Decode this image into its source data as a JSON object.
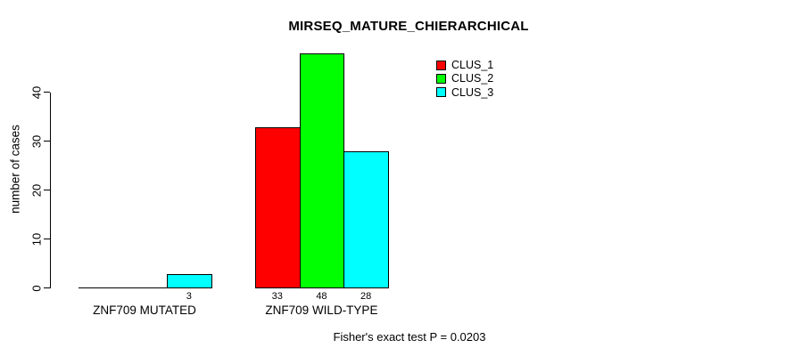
{
  "title": "MIRSEQ_MATURE_CHIERARCHICAL",
  "footer": "Fisher's exact test P = 0.0203",
  "y_axis": {
    "label": "number of cases"
  },
  "legend": {
    "items": [
      {
        "label": "CLUS_1",
        "color": "#ff0000"
      },
      {
        "label": "CLUS_2",
        "color": "#00ff00"
      },
      {
        "label": "CLUS_3",
        "color": "#00ffff"
      }
    ]
  },
  "chart_data": {
    "type": "bar",
    "title": "MIRSEQ_MATURE_CHIERARCHICAL",
    "categories": [
      "ZNF709 MUTATED",
      "ZNF709 WILD-TYPE"
    ],
    "series": [
      {
        "name": "CLUS_1",
        "color": "#ff0000",
        "values": [
          0,
          33
        ]
      },
      {
        "name": "CLUS_2",
        "color": "#00ff00",
        "values": [
          0,
          48
        ]
      },
      {
        "name": "CLUS_3",
        "color": "#00ffff",
        "values": [
          3,
          28
        ]
      }
    ],
    "bar_value_labels_visible": [
      "3",
      "33",
      "48",
      "28"
    ],
    "xlabel": "",
    "ylabel": "number of cases",
    "yticks": [
      0,
      10,
      20,
      30,
      40
    ],
    "ylim": [
      0,
      48
    ],
    "grid": false,
    "legend_position": "top-right-inside",
    "annotation": "Fisher's exact test P = 0.0203"
  }
}
